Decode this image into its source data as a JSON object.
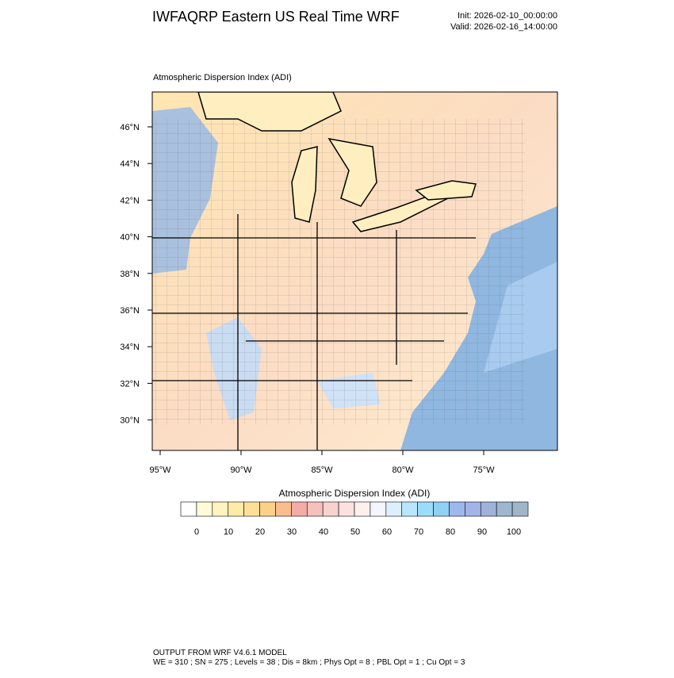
{
  "header": {
    "title": "IWFAQRP Eastern US Real Time WRF",
    "init": "Init: 2026-02-10_00:00:00",
    "valid": "Valid: 2026-02-16_14:00:00"
  },
  "map": {
    "title": "Atmospheric Dispersion Index   (ADI)",
    "lat_labels": [
      "46°N",
      "44°N",
      "42°N",
      "40°N",
      "38°N",
      "36°N",
      "34°N",
      "32°N",
      "30°N"
    ],
    "lon_labels": [
      "95°W",
      "90°W",
      "85°W",
      "80°W",
      "75°W"
    ]
  },
  "colorbar": {
    "title": "Atmospheric Dispersion Index  (ADI)",
    "ticks": [
      0,
      10,
      20,
      30,
      40,
      50,
      60,
      70,
      80,
      90,
      100
    ],
    "colors": [
      "#ffffff",
      "#fffbd8",
      "#fff3c0",
      "#ffeaa8",
      "#ffdf98",
      "#fdd08a",
      "#f9bd8e",
      "#f3aca6",
      "#f6c0bd",
      "#f8d2cf",
      "#fbe2e0",
      "#fdf0ef",
      "#f3f5ff",
      "#dcefff",
      "#b8e6ff",
      "#9cdcfb",
      "#8fd0f4",
      "#9cb8ec",
      "#a3b4e8",
      "#9fb2dc",
      "#9eb6d0",
      "#9fb6c9"
    ]
  },
  "footer": {
    "line1": "OUTPUT FROM WRF V4.6.1 MODEL",
    "line2": "WE = 310 ; SN = 275 ; Levels = 38 ; Dis = 8km ; Phys Opt = 8 ; PBL Opt = 1 ; Cu Opt = 3"
  }
}
